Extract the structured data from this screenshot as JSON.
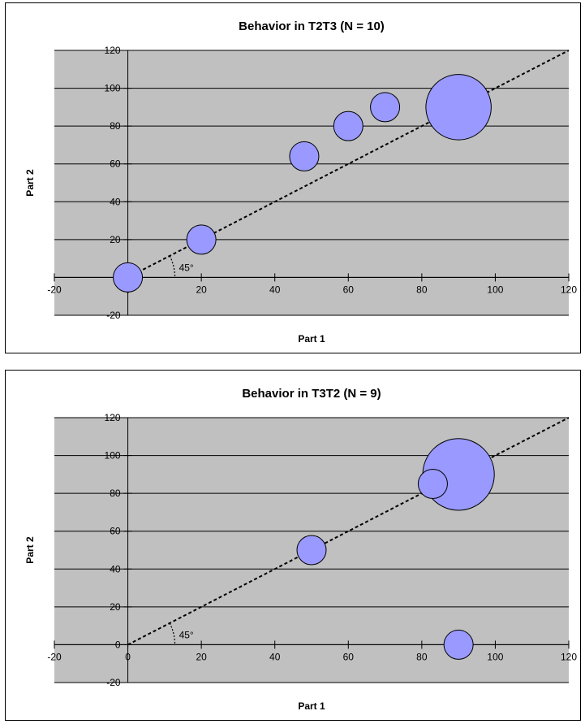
{
  "chart_data": [
    {
      "type": "bubble",
      "title": "Behavior in T2T3 (N = 10)",
      "xlabel": "Part 1",
      "ylabel": "Part 2",
      "xlim": [
        -20,
        120
      ],
      "ylim": [
        -20,
        120
      ],
      "x_ticks": [
        -20,
        0,
        20,
        40,
        60,
        80,
        100,
        120
      ],
      "y_ticks": [
        -20,
        0,
        20,
        40,
        60,
        80,
        100,
        120
      ],
      "grid": "horizontal",
      "bubble_color": "#9999ff",
      "plot_bg": "#c0c0c0",
      "points": [
        {
          "x": 0,
          "y": 0,
          "size": 1
        },
        {
          "x": 20,
          "y": 20,
          "size": 1
        },
        {
          "x": 48,
          "y": 64,
          "size": 1
        },
        {
          "x": 60,
          "y": 80,
          "size": 1
        },
        {
          "x": 70,
          "y": 90,
          "size": 1
        },
        {
          "x": 90,
          "y": 90,
          "size": 5
        }
      ],
      "reference_line": {
        "from": [
          0,
          0
        ],
        "to": [
          120,
          120
        ],
        "style": "dashed"
      },
      "annotation": "45°"
    },
    {
      "type": "bubble",
      "title": "Behavior in T3T2 (N = 9)",
      "xlabel": "Part 1",
      "ylabel": "Part 2",
      "xlim": [
        -20,
        120
      ],
      "ylim": [
        -20,
        120
      ],
      "x_ticks": [
        -20,
        0,
        20,
        40,
        60,
        80,
        100,
        120
      ],
      "y_ticks": [
        -20,
        0,
        20,
        40,
        60,
        80,
        100,
        120
      ],
      "grid": "horizontal",
      "bubble_color": "#9999ff",
      "plot_bg": "#c0c0c0",
      "points": [
        {
          "x": 50,
          "y": 50,
          "size": 1
        },
        {
          "x": 83,
          "y": 85,
          "size": 1
        },
        {
          "x": 90,
          "y": 90,
          "size": 6
        },
        {
          "x": 90,
          "y": 0,
          "size": 1
        }
      ],
      "reference_line": {
        "from": [
          0,
          0
        ],
        "to": [
          120,
          120
        ],
        "style": "dashed"
      },
      "annotation": "45°"
    }
  ]
}
